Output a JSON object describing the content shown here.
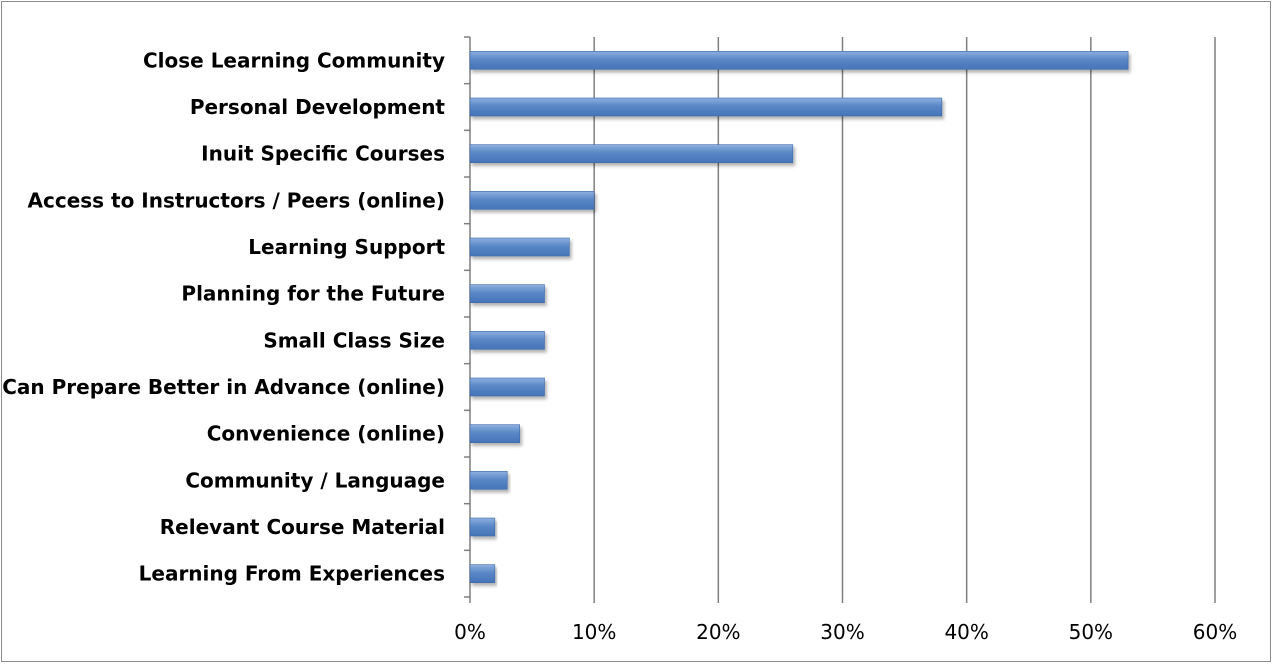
{
  "chart_data": {
    "type": "bar",
    "orientation": "horizontal",
    "categories": [
      "Close Learning Community",
      "Personal Development",
      "Inuit Specific Courses",
      "Access to Instructors / Peers (online)",
      "Learning Support",
      "Planning for the Future",
      "Small Class Size",
      "Can Prepare Better in Advance (online)",
      "Convenience (online)",
      "Community / Language",
      "Relevant Course Material",
      "Learning From Experiences"
    ],
    "values": [
      53,
      38,
      26,
      10,
      8,
      6,
      6,
      6,
      4,
      3,
      2,
      2
    ],
    "xlim": [
      0,
      60
    ],
    "xticks": [
      0,
      10,
      20,
      30,
      40,
      50,
      60
    ],
    "xtick_labels": [
      "0%",
      "10%",
      "20%",
      "30%",
      "40%",
      "50%",
      "60%"
    ],
    "grid": "vertical",
    "legend": "none",
    "colors": {
      "bar": "#4f81bd",
      "bar_light": "#8db0e0",
      "grid": "#7f7f7f",
      "border": "#8c8c8c"
    }
  }
}
